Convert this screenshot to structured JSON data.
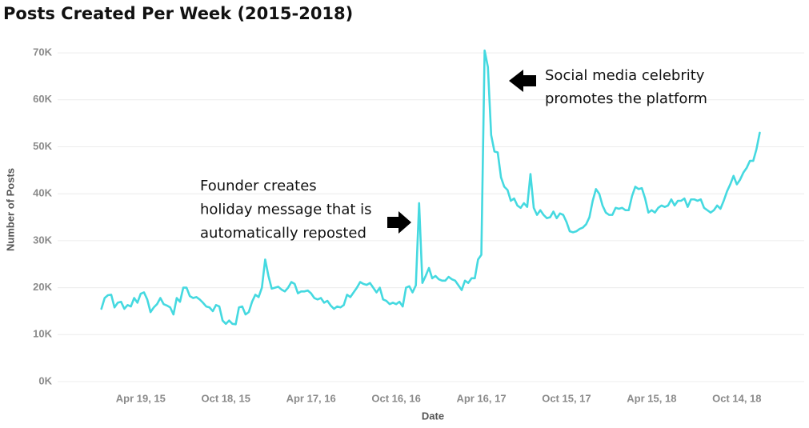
{
  "chart_data": {
    "type": "line",
    "title": "Posts Created Per Week (2015-2018)",
    "x_label": "Date",
    "y_label": "Number of Posts",
    "color": "#45d9e0",
    "grid": true,
    "xlim": [
      "2014-10-20",
      "2019-03-07"
    ],
    "xticks": [
      {
        "value": "2015-04-19",
        "label": "Apr 19, 15"
      },
      {
        "value": "2015-10-18",
        "label": "Oct 18, 15"
      },
      {
        "value": "2016-04-17",
        "label": "Apr 17, 16"
      },
      {
        "value": "2016-10-16",
        "label": "Oct 16, 16"
      },
      {
        "value": "2017-04-16",
        "label": "Apr 16, 17"
      },
      {
        "value": "2017-10-15",
        "label": "Oct 15, 17"
      },
      {
        "value": "2018-04-15",
        "label": "Apr 15, 18"
      },
      {
        "value": "2018-10-14",
        "label": "Oct 14, 18"
      }
    ],
    "ylim": [
      0,
      72000
    ],
    "yticks": [
      {
        "value": 0,
        "label": "0K"
      },
      {
        "value": 10000,
        "label": "10K"
      },
      {
        "value": 20000,
        "label": "20K"
      },
      {
        "value": 30000,
        "label": "30K"
      },
      {
        "value": 40000,
        "label": "40K"
      },
      {
        "value": 50000,
        "label": "50K"
      },
      {
        "value": 60000,
        "label": "60K"
      },
      {
        "value": 70000,
        "label": "70K"
      }
    ],
    "annotations": [
      {
        "lines": [
          "Founder creates",
          "holiday message that is",
          "automatically reposted"
        ]
      },
      {
        "lines": [
          "Social media celebrity",
          "promotes the platform"
        ]
      }
    ],
    "x": [
      "2015-01-25",
      "2015-02-01",
      "2015-02-08",
      "2015-02-15",
      "2015-02-22",
      "2015-03-01",
      "2015-03-08",
      "2015-03-15",
      "2015-03-22",
      "2015-03-29",
      "2015-04-05",
      "2015-04-12",
      "2015-04-19",
      "2015-04-26",
      "2015-05-03",
      "2015-05-10",
      "2015-05-17",
      "2015-05-24",
      "2015-05-31",
      "2015-06-07",
      "2015-06-14",
      "2015-06-21",
      "2015-06-28",
      "2015-07-05",
      "2015-07-12",
      "2015-07-19",
      "2015-07-26",
      "2015-08-02",
      "2015-08-09",
      "2015-08-16",
      "2015-08-23",
      "2015-08-30",
      "2015-09-06",
      "2015-09-13",
      "2015-09-20",
      "2015-09-27",
      "2015-10-04",
      "2015-10-11",
      "2015-10-18",
      "2015-10-25",
      "2015-11-01",
      "2015-11-08",
      "2015-11-15",
      "2015-11-22",
      "2015-11-29",
      "2015-12-06",
      "2015-12-13",
      "2015-12-20",
      "2015-12-27",
      "2016-01-03",
      "2016-01-10",
      "2016-01-17",
      "2016-01-24",
      "2016-01-31",
      "2016-02-07",
      "2016-02-14",
      "2016-02-21",
      "2016-02-28",
      "2016-03-06",
      "2016-03-13",
      "2016-03-20",
      "2016-03-27",
      "2016-04-03",
      "2016-04-10",
      "2016-04-17",
      "2016-04-24",
      "2016-05-01",
      "2016-05-08",
      "2016-05-15",
      "2016-05-22",
      "2016-05-29",
      "2016-06-05",
      "2016-06-12",
      "2016-06-19",
      "2016-06-26",
      "2016-07-03",
      "2016-07-10",
      "2016-07-17",
      "2016-07-24",
      "2016-07-31",
      "2016-08-07",
      "2016-08-14",
      "2016-08-21",
      "2016-08-28",
      "2016-09-04",
      "2016-09-11",
      "2016-09-18",
      "2016-09-25",
      "2016-10-02",
      "2016-10-09",
      "2016-10-16",
      "2016-10-23",
      "2016-10-30",
      "2016-11-06",
      "2016-11-13",
      "2016-11-20",
      "2016-11-27",
      "2016-12-04",
      "2016-12-11",
      "2016-12-18",
      "2016-12-25",
      "2017-01-01",
      "2017-01-08",
      "2017-01-15",
      "2017-01-22",
      "2017-01-29",
      "2017-02-05",
      "2017-02-12",
      "2017-02-19",
      "2017-02-26",
      "2017-03-05",
      "2017-03-12",
      "2017-03-19",
      "2017-03-26",
      "2017-04-02",
      "2017-04-09",
      "2017-04-16",
      "2017-04-23",
      "2017-04-30",
      "2017-05-07",
      "2017-05-14",
      "2017-05-21",
      "2017-05-28",
      "2017-06-04",
      "2017-06-11",
      "2017-06-18",
      "2017-06-25",
      "2017-07-02",
      "2017-07-09",
      "2017-07-16",
      "2017-07-23",
      "2017-07-30",
      "2017-08-06",
      "2017-08-13",
      "2017-08-20",
      "2017-08-27",
      "2017-09-03",
      "2017-09-10",
      "2017-09-17",
      "2017-09-24",
      "2017-10-01",
      "2017-10-08",
      "2017-10-15",
      "2017-10-22",
      "2017-10-29",
      "2017-11-05",
      "2017-11-12",
      "2017-11-19",
      "2017-11-26",
      "2017-12-03",
      "2017-12-10",
      "2017-12-17",
      "2017-12-24",
      "2017-12-31",
      "2018-01-07",
      "2018-01-14",
      "2018-01-21",
      "2018-01-28",
      "2018-02-04",
      "2018-02-11",
      "2018-02-18",
      "2018-02-25",
      "2018-03-04",
      "2018-03-11",
      "2018-03-18",
      "2018-03-25",
      "2018-04-01",
      "2018-04-08",
      "2018-04-15",
      "2018-04-22",
      "2018-04-29",
      "2018-05-06",
      "2018-05-13",
      "2018-05-20",
      "2018-05-27",
      "2018-06-03",
      "2018-06-10",
      "2018-06-17",
      "2018-06-24",
      "2018-07-01",
      "2018-07-08",
      "2018-07-15",
      "2018-07-22",
      "2018-07-29",
      "2018-08-05",
      "2018-08-12",
      "2018-08-19",
      "2018-08-26",
      "2018-09-02",
      "2018-09-09",
      "2018-09-16",
      "2018-09-23",
      "2018-09-30",
      "2018-10-07",
      "2018-10-14",
      "2018-10-21",
      "2018-10-28",
      "2018-11-04",
      "2018-11-11",
      "2018-11-18",
      "2018-11-25",
      "2018-12-02"
    ],
    "values": [
      15500,
      17800,
      18400,
      18500,
      15800,
      16800,
      17000,
      15500,
      16300,
      16000,
      17800,
      16800,
      18700,
      19000,
      17500,
      14800,
      15800,
      16500,
      17800,
      16500,
      16200,
      15800,
      14300,
      17800,
      17000,
      20000,
      20000,
      18200,
      17800,
      18000,
      17500,
      16800,
      16000,
      15800,
      15000,
      16300,
      16000,
      13000,
      12300,
      13000,
      12300,
      12200,
      15800,
      16000,
      14300,
      14800,
      17000,
      18500,
      18000,
      20000,
      26000,
      22500,
      19800,
      20000,
      20200,
      19600,
      19200,
      20000,
      21200,
      20800,
      18800,
      19200,
      19200,
      19400,
      18800,
      17800,
      17500,
      17800,
      16800,
      17200,
      16200,
      15500,
      16000,
      15800,
      16300,
      18500,
      18000,
      19000,
      20000,
      21200,
      20800,
      20600,
      21000,
      20000,
      19000,
      20000,
      17500,
      17200,
      16500,
      16800,
      16500,
      17000,
      16000,
      20000,
      20300,
      19000,
      20500,
      38000,
      21000,
      22500,
      24200,
      22000,
      22500,
      21800,
      21500,
      21500,
      22300,
      21800,
      21500,
      20500,
      19500,
      21500,
      21000,
      22000,
      22000,
      26000,
      27000,
      70500,
      67000,
      52500,
      49000,
      48800,
      43500,
      41500,
      40800,
      38500,
      39000,
      37500,
      37000,
      38000,
      37200,
      44200,
      37000,
      35500,
      36500,
      35500,
      34800,
      35000,
      36200,
      34800,
      35800,
      35500,
      34000,
      32000,
      31800,
      32000,
      32500,
      32800,
      33500,
      35000,
      38500,
      41000,
      40000,
      37500,
      36000,
      35500,
      35500,
      37000,
      36800,
      37000,
      36500,
      36500,
      39500,
      41500,
      41000,
      41200,
      39000,
      36000,
      36500,
      36000,
      37000,
      37500,
      37200,
      37500,
      38800,
      37500,
      38500,
      38500,
      39000,
      37200,
      38800,
      38800,
      38500,
      38800,
      37000,
      36500,
      36000,
      36500,
      37500,
      36800,
      38500,
      40500,
      42000,
      43800,
      42000,
      43000,
      44500,
      45500,
      47000,
      47000,
      49500,
      53000
    ]
  }
}
